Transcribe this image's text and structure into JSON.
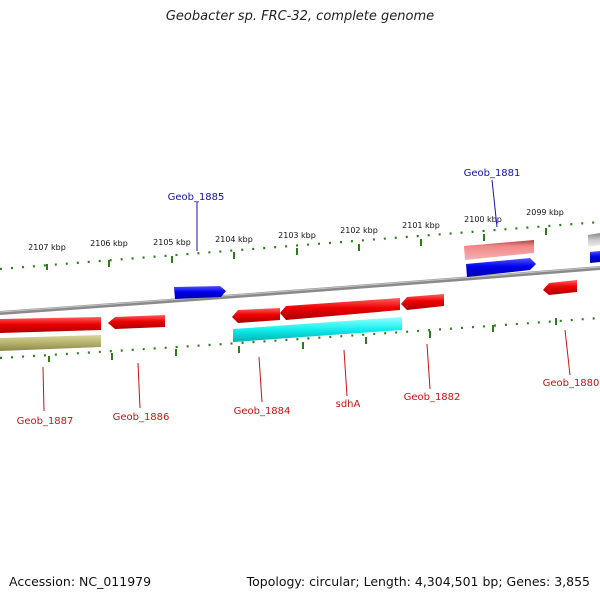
{
  "title": "Geobacter sp. FRC-32, complete genome",
  "footer": {
    "accession": "Accession: NC_011979",
    "summary": "Topology: circular; Length: 4,304,501 bp; Genes: 3,855"
  },
  "colors": {
    "backbone": "#8a8a8a",
    "ticks": "#2e7d1a",
    "cds": "#ee1111",
    "cds_alt": "#1111ee",
    "rna": "#22e8ee",
    "pseudo": "#b5b26e",
    "faded": "#e88080",
    "label_minus": "#cc1111",
    "label_plus": "#1111aa"
  },
  "ruler": {
    "labels": [
      "2107 kbp",
      "2106 kbp",
      "2105 kbp",
      "2104 kbp",
      "2103 kbp",
      "2102 kbp",
      "2101 kbp",
      "2100 kbp",
      "2099 kbp"
    ]
  },
  "genes": [
    {
      "name": "Geob_1887",
      "color": "label_minus"
    },
    {
      "name": "Geob_1886",
      "color": "label_minus"
    },
    {
      "name": "Geob_1885",
      "color": "label_plus"
    },
    {
      "name": "Geob_1884",
      "color": "label_minus"
    },
    {
      "name": "sdhA",
      "color": "label_minus"
    },
    {
      "name": "Geob_1882",
      "color": "label_minus"
    },
    {
      "name": "Geob_1881",
      "color": "label_plus"
    },
    {
      "name": "Geob_1880",
      "color": "label_minus"
    }
  ]
}
